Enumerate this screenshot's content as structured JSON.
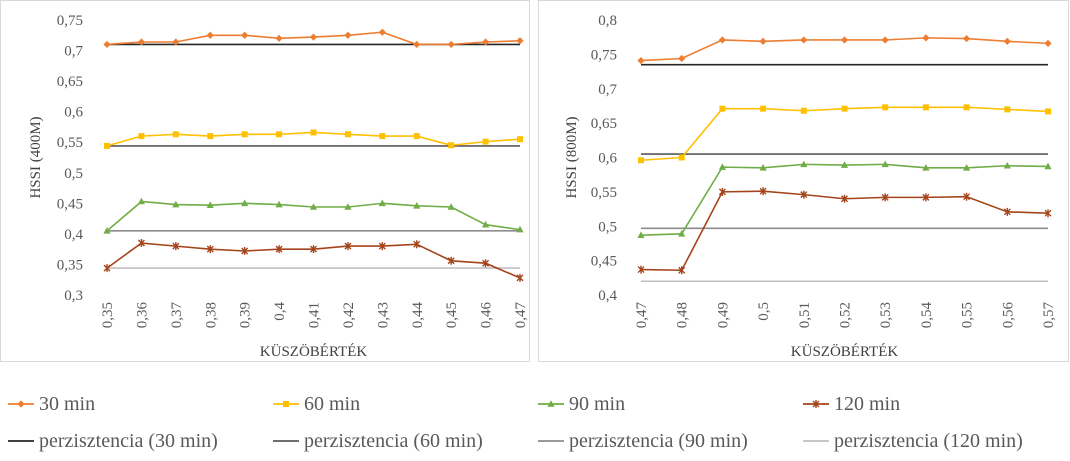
{
  "chart_data": [
    {
      "type": "line",
      "xlabel": "KÜSZÖBÉRTÉK",
      "ylabel": "HSSI (400M)",
      "categories": [
        "0,35",
        "0,36",
        "0,37",
        "0,38",
        "0,39",
        "0,4",
        "0,41",
        "0,42",
        "0,43",
        "0,44",
        "0,45",
        "0,46",
        "0,47"
      ],
      "ylim": [
        0.3,
        0.75
      ],
      "yticks": [
        0.3,
        0.35,
        0.4,
        0.45,
        0.5,
        0.55,
        0.6,
        0.65,
        0.7,
        0.75
      ],
      "ytick_labels": [
        "0,3",
        "0,35",
        "0,4",
        "0,45",
        "0,5",
        "0,55",
        "0,6",
        "0,65",
        "0,7",
        "0,75"
      ],
      "series": [
        {
          "name": "30 min",
          "values": [
            0.71,
            0.714,
            0.714,
            0.725,
            0.725,
            0.72,
            0.722,
            0.725,
            0.73,
            0.71,
            0.71,
            0.714,
            0.716
          ]
        },
        {
          "name": "60 min",
          "values": [
            0.544,
            0.56,
            0.563,
            0.56,
            0.563,
            0.563,
            0.566,
            0.563,
            0.56,
            0.56,
            0.545,
            0.551,
            0.555
          ]
        },
        {
          "name": "90 min",
          "values": [
            0.405,
            0.453,
            0.448,
            0.447,
            0.45,
            0.448,
            0.444,
            0.444,
            0.45,
            0.446,
            0.444,
            0.415,
            0.407
          ]
        },
        {
          "name": "120 min",
          "values": [
            0.344,
            0.385,
            0.38,
            0.375,
            0.372,
            0.375,
            0.375,
            0.38,
            0.38,
            0.383,
            0.356,
            0.352,
            0.328
          ]
        }
      ],
      "persistence": [
        {
          "name": "perzisztencia (30 min)",
          "value": 0.71
        },
        {
          "name": "perzisztencia (60 min)",
          "value": 0.544
        },
        {
          "name": "perzisztencia (90 min)",
          "value": 0.405
        },
        {
          "name": "perzisztencia (120 min)",
          "value": 0.344
        }
      ],
      "grid": false
    },
    {
      "type": "line",
      "xlabel": "KÜSZÖBÉRTÉK",
      "ylabel": "HSSI (800M)",
      "categories": [
        "0,47",
        "0,48",
        "0,49",
        "0,5",
        "0,51",
        "0,52",
        "0,53",
        "0,54",
        "0,55",
        "0,56",
        "0,57"
      ],
      "ylim": [
        0.4,
        0.8
      ],
      "yticks": [
        0.4,
        0.45,
        0.5,
        0.55,
        0.6,
        0.65,
        0.7,
        0.75,
        0.8
      ],
      "ytick_labels": [
        "0,4",
        "0,45",
        "0,5",
        "0,55",
        "0,6",
        "0,65",
        "0,7",
        "0,75",
        "0,8"
      ],
      "series": [
        {
          "name": "30 min",
          "values": [
            0.741,
            0.744,
            0.771,
            0.769,
            0.771,
            0.771,
            0.771,
            0.774,
            0.773,
            0.769,
            0.766
          ]
        },
        {
          "name": "60 min",
          "values": [
            0.596,
            0.6,
            0.671,
            0.671,
            0.668,
            0.671,
            0.673,
            0.673,
            0.673,
            0.67,
            0.667
          ]
        },
        {
          "name": "90 min",
          "values": [
            0.487,
            0.489,
            0.586,
            0.585,
            0.59,
            0.589,
            0.59,
            0.585,
            0.585,
            0.588,
            0.587
          ]
        },
        {
          "name": "120 min",
          "values": [
            0.437,
            0.436,
            0.55,
            0.551,
            0.546,
            0.54,
            0.542,
            0.542,
            0.543,
            0.521,
            0.519
          ]
        }
      ],
      "persistence": [
        {
          "name": "perzisztencia (30 min)",
          "value": 0.735
        },
        {
          "name": "perzisztencia (60 min)",
          "value": 0.605
        },
        {
          "name": "perzisztencia (90 min)",
          "value": 0.497
        },
        {
          "name": "perzisztencia (120 min)",
          "value": 0.42
        }
      ],
      "grid": false
    }
  ],
  "legend": {
    "placement": "bottom",
    "items": [
      {
        "label": "30 min",
        "marker": "diamond",
        "color": "#ED7D31"
      },
      {
        "label": "60 min",
        "marker": "square",
        "color": "#FFC000"
      },
      {
        "label": "90 min",
        "marker": "triangle",
        "color": "#70AD47"
      },
      {
        "label": "120 min",
        "marker": "star",
        "color": "#A5441A"
      },
      {
        "label": "perzisztencia (30 min)",
        "marker": "line",
        "color": "#262626"
      },
      {
        "label": "perzisztencia (60 min)",
        "marker": "line",
        "color": "#595959"
      },
      {
        "label": "perzisztencia (90 min)",
        "marker": "line",
        "color": "#8C8C8C"
      },
      {
        "label": "perzisztencia (120 min)",
        "marker": "line",
        "color": "#BFBFBF"
      }
    ]
  },
  "colors": {
    "series": [
      "#ED7D31",
      "#FFC000",
      "#70AD47",
      "#A5441A"
    ],
    "persistence": [
      "#262626",
      "#595959",
      "#8C8C8C",
      "#BFBFBF"
    ],
    "axis": "#BFBFBF",
    "tick_text": "#595959"
  }
}
